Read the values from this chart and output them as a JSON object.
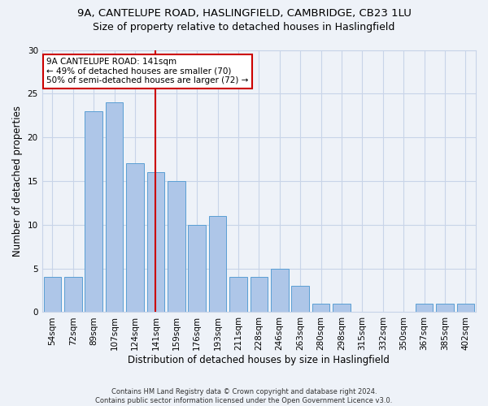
{
  "title_line1": "9A, CANTELUPE ROAD, HASLINGFIELD, CAMBRIDGE, CB23 1LU",
  "title_line2": "Size of property relative to detached houses in Haslingfield",
  "xlabel": "Distribution of detached houses by size in Haslingfield",
  "ylabel": "Number of detached properties",
  "categories": [
    "54sqm",
    "72sqm",
    "89sqm",
    "107sqm",
    "124sqm",
    "141sqm",
    "159sqm",
    "176sqm",
    "193sqm",
    "211sqm",
    "228sqm",
    "246sqm",
    "263sqm",
    "280sqm",
    "298sqm",
    "315sqm",
    "332sqm",
    "350sqm",
    "367sqm",
    "385sqm",
    "402sqm"
  ],
  "values": [
    4,
    4,
    23,
    24,
    17,
    16,
    15,
    10,
    11,
    4,
    4,
    5,
    3,
    1,
    1,
    0,
    0,
    0,
    1,
    1,
    1
  ],
  "bar_color": "#aec6e8",
  "bar_edge_color": "#5a9fd4",
  "highlight_index": 5,
  "highlight_line_color": "#cc0000",
  "annotation_text": "9A CANTELUPE ROAD: 141sqm\n← 49% of detached houses are smaller (70)\n50% of semi-detached houses are larger (72) →",
  "annotation_box_color": "#ffffff",
  "annotation_box_edge_color": "#cc0000",
  "ylim": [
    0,
    30
  ],
  "yticks": [
    0,
    5,
    10,
    15,
    20,
    25,
    30
  ],
  "grid_color": "#c8d4e8",
  "background_color": "#eef2f8",
  "footnote1": "Contains HM Land Registry data © Crown copyright and database right 2024.",
  "footnote2": "Contains public sector information licensed under the Open Government Licence v3.0.",
  "title_fontsize": 9.5,
  "axis_label_fontsize": 8.5,
  "tick_fontsize": 7.5,
  "annotation_fontsize": 7.5
}
